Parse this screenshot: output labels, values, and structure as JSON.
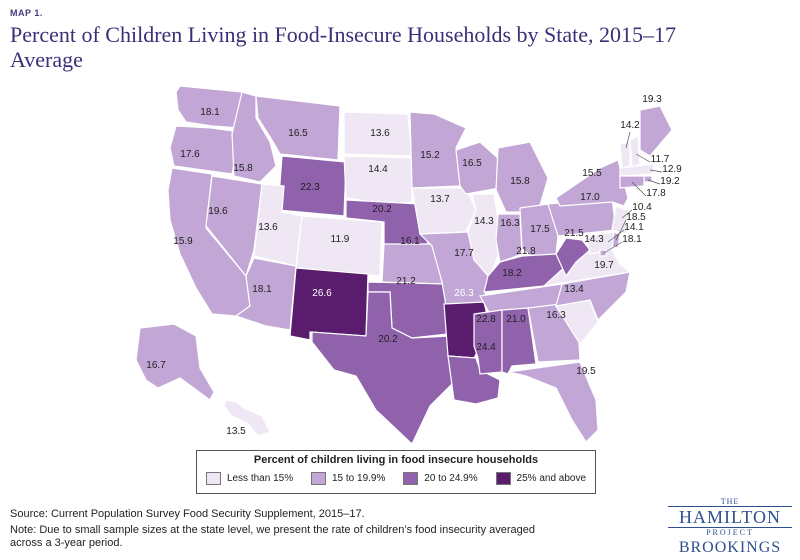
{
  "header": {
    "map_label": "MAP 1.",
    "title": "Percent of Children Living in Food-Insecure Households by State, 2015–17 Average"
  },
  "legend": {
    "title": "Percent of children living in food insecure households",
    "items": [
      {
        "label": "Less than 15%",
        "color": "#efe8f4"
      },
      {
        "label": "15 to 19.9%",
        "color": "#c2a7d6"
      },
      {
        "label": "20 to 24.9%",
        "color": "#8f62ab"
      },
      {
        "label": "25% and above",
        "color": "#5a1d6e"
      }
    ]
  },
  "states": [
    {
      "state": "WA",
      "value": 18.1
    },
    {
      "state": "OR",
      "value": 17.6
    },
    {
      "state": "CA",
      "value": 15.9
    },
    {
      "state": "ID",
      "value": 15.8
    },
    {
      "state": "NV",
      "value": 19.6
    },
    {
      "state": "MT",
      "value": 16.5
    },
    {
      "state": "WY",
      "value": 22.3
    },
    {
      "state": "UT",
      "value": 13.6
    },
    {
      "state": "AZ",
      "value": 18.1
    },
    {
      "state": "CO",
      "value": 11.9
    },
    {
      "state": "NM",
      "value": 26.6
    },
    {
      "state": "ND",
      "value": 13.6
    },
    {
      "state": "SD",
      "value": 14.4
    },
    {
      "state": "NE",
      "value": 20.2
    },
    {
      "state": "KS",
      "value": 16.1
    },
    {
      "state": "OK",
      "value": 21.2
    },
    {
      "state": "TX",
      "value": 20.2
    },
    {
      "state": "MN",
      "value": 15.2
    },
    {
      "state": "IA",
      "value": 13.7
    },
    {
      "state": "MO",
      "value": 17.7
    },
    {
      "state": "AR",
      "value": 26.3
    },
    {
      "state": "LA",
      "value": 24.4
    },
    {
      "state": "WI",
      "value": 16.5
    },
    {
      "state": "IL",
      "value": 14.3
    },
    {
      "state": "MI",
      "value": 15.8
    },
    {
      "state": "IN",
      "value": 16.3
    },
    {
      "state": "OH",
      "value": 17.5
    },
    {
      "state": "KY",
      "value": 21.8
    },
    {
      "state": "TN",
      "value": 18.2
    },
    {
      "state": "MS",
      "value": 22.8
    },
    {
      "state": "AL",
      "value": 21.0
    },
    {
      "state": "GA",
      "value": 16.3
    },
    {
      "state": "FL",
      "value": 19.5
    },
    {
      "state": "SC",
      "value": 13.4
    },
    {
      "state": "NC",
      "value": 19.7
    },
    {
      "state": "VA",
      "value": 14.3
    },
    {
      "state": "WV",
      "value": 21.5
    },
    {
      "state": "PA",
      "value": 17.0
    },
    {
      "state": "NY",
      "value": 15.5
    },
    {
      "state": "ME",
      "value": 19.3
    },
    {
      "state": "VT",
      "value": 14.2
    },
    {
      "state": "NH",
      "value": 11.7
    },
    {
      "state": "MA",
      "value": 12.9
    },
    {
      "state": "RI",
      "value": 19.2
    },
    {
      "state": "CT",
      "value": 17.8
    },
    {
      "state": "NJ",
      "value": 10.4
    },
    {
      "state": "DE",
      "value": 18.5
    },
    {
      "state": "MD",
      "value": 14.1
    },
    {
      "state": "DC",
      "value": 18.1
    },
    {
      "state": "AK",
      "value": 16.7
    },
    {
      "state": "HI",
      "value": 13.5
    }
  ],
  "footer": {
    "source": "Source: Current Population Survey Food Security Supplement, 2015–17.",
    "note": "Note: Due to small sample sizes at the state level, we present the rate of children’s food insecurity averaged across a 3-year period."
  },
  "logo": {
    "the": "THE",
    "hamilton": "HAMILTON",
    "project": "PROJECT",
    "brookings": "BROOKINGS"
  }
}
